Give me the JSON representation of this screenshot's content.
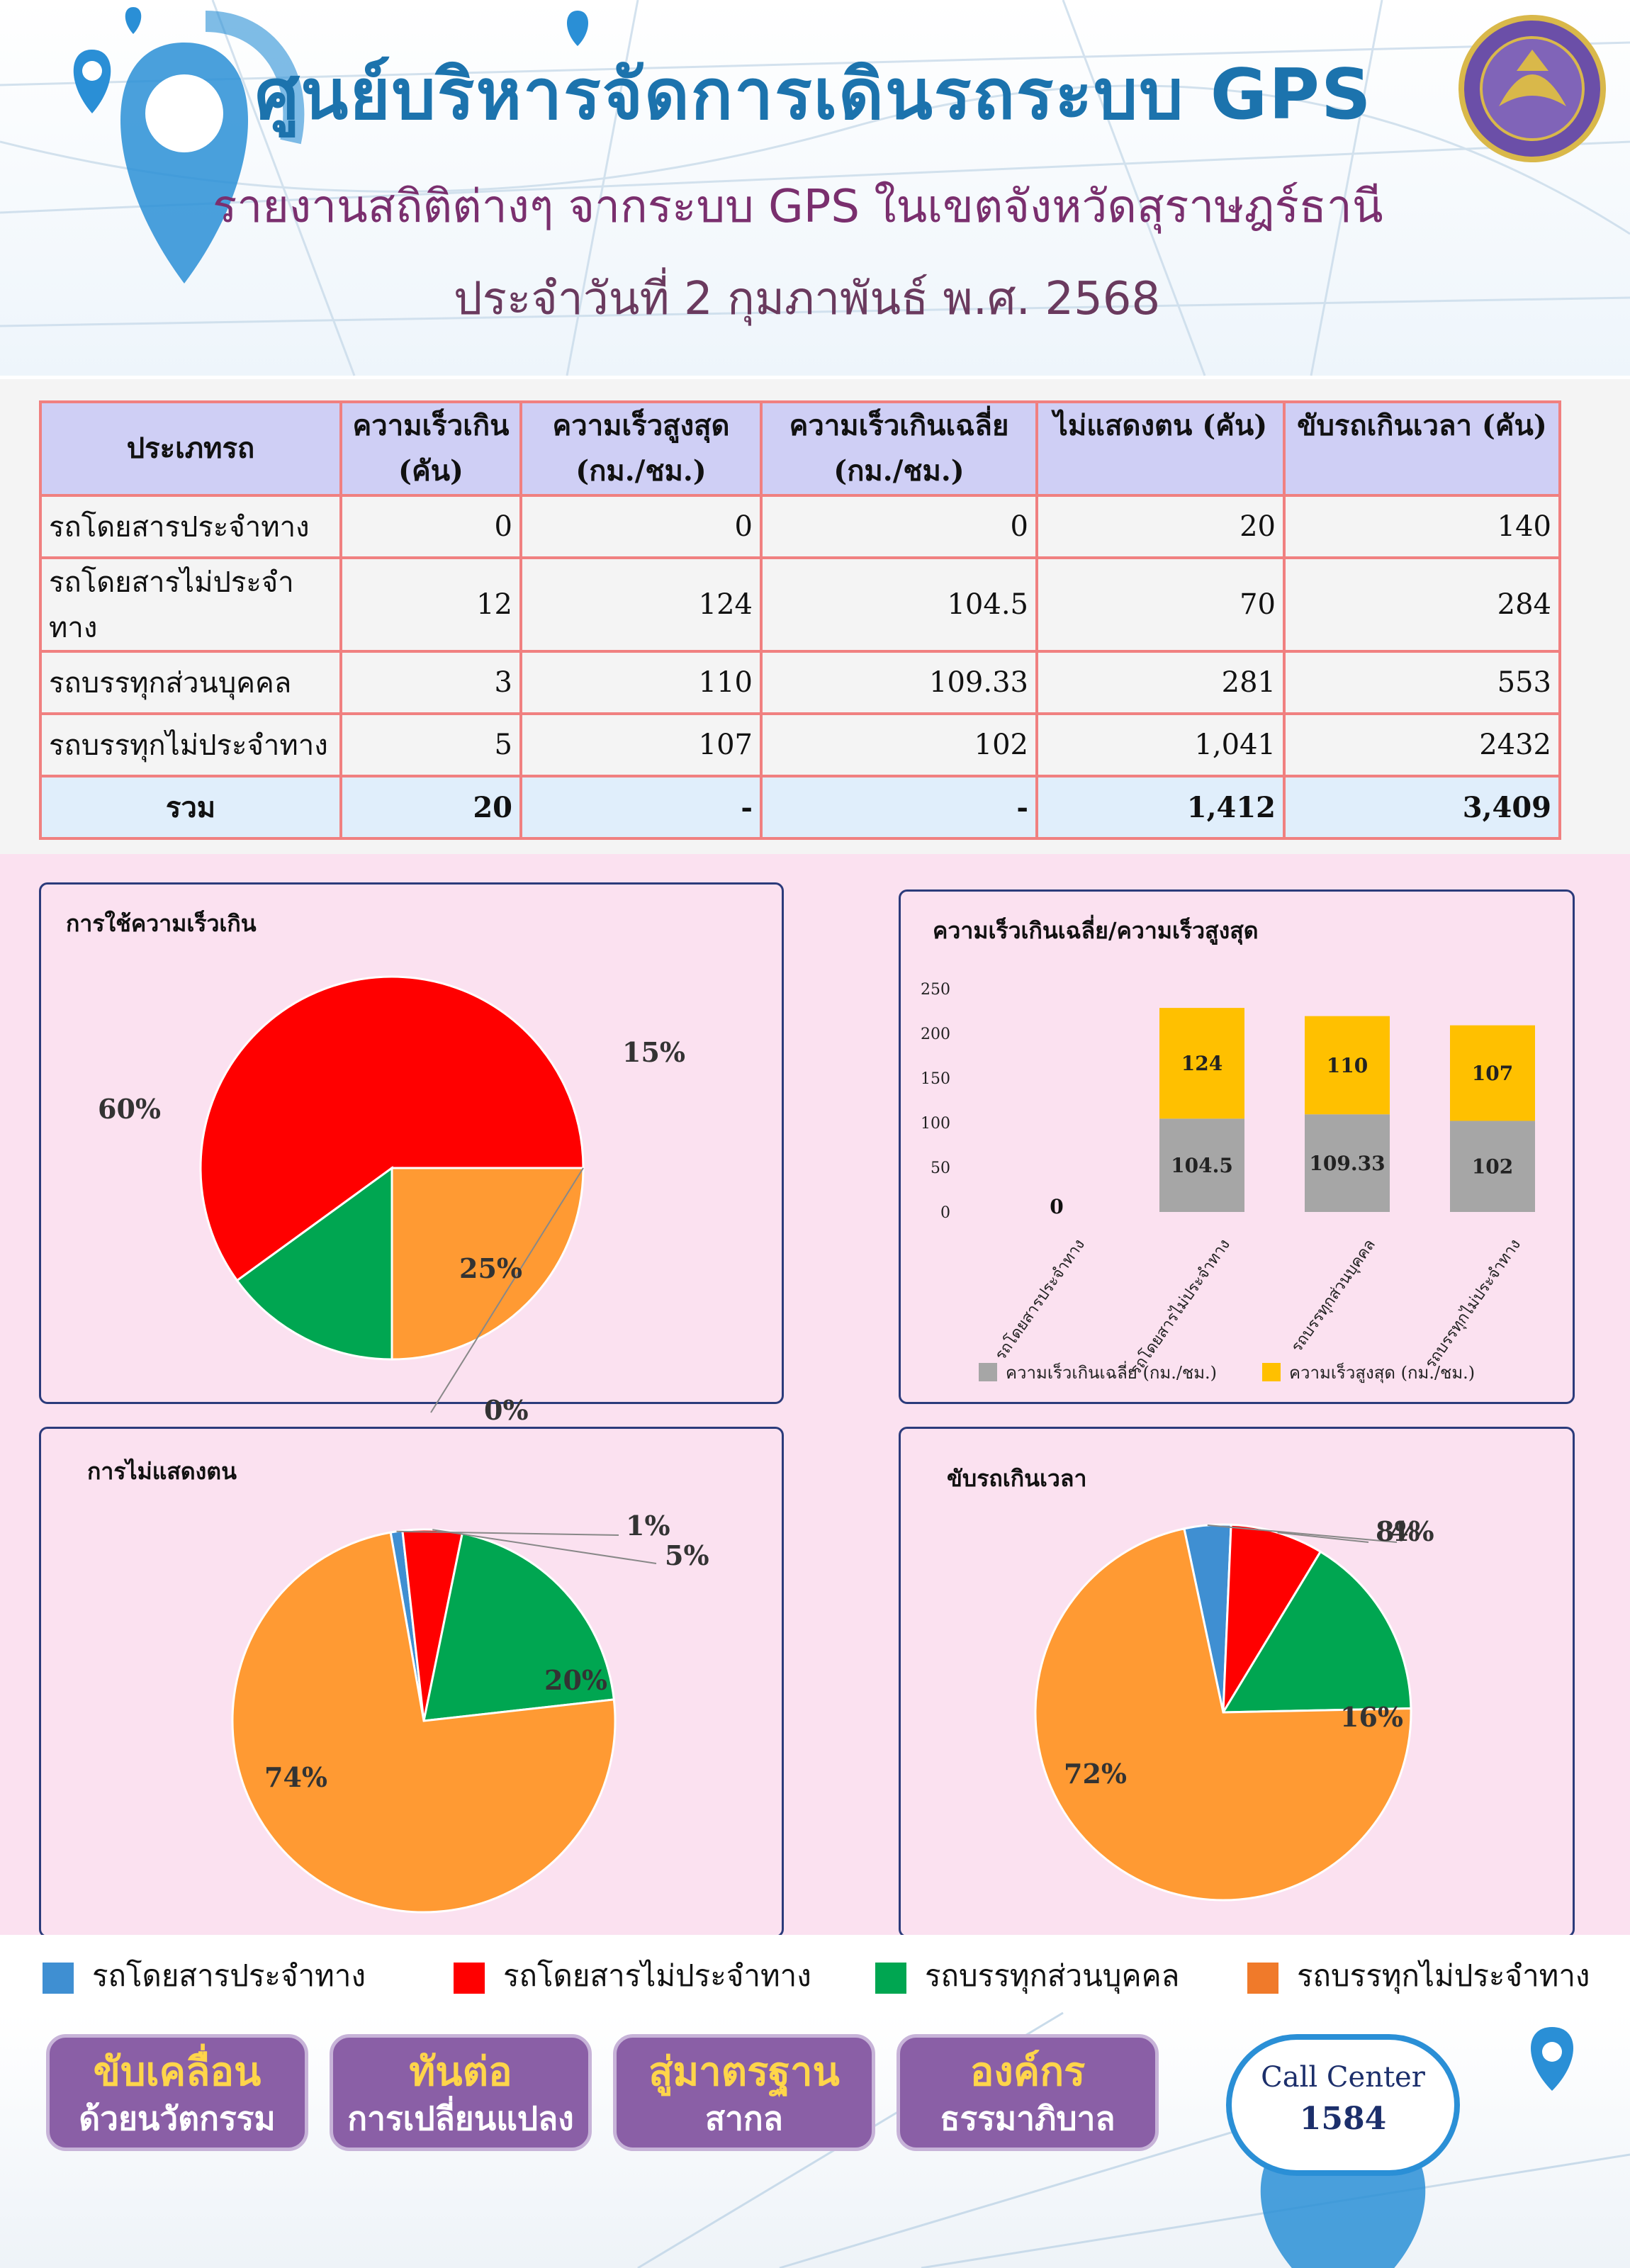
{
  "header": {
    "title": "ศูนย์บริหารจัดการเดินรถระบบ GPS",
    "subtitle": "รายงานสถิติต่างๆ จากระบบ GPS ในเขตจังหวัดสุราษฎร์ธานี",
    "date_line": "ประจำวันที่  2 กุมภาพันธ์  พ.ศ. 2568"
  },
  "table": {
    "headers": [
      "ประเภทรถ",
      "ความเร็วเกิน (คัน)",
      "ความเร็วสูงสุด (กม./ชม.)",
      "ความเร็วเกินเฉลี่ย (กม./ชม.)",
      "ไม่แสดงตน (คัน)",
      "ขับรถเกินเวลา (คัน)"
    ],
    "rows": [
      [
        "รถโดยสารประจำทาง",
        "0",
        "0",
        "0",
        "20",
        "140"
      ],
      [
        "รถโดยสารไม่ประจำทาง",
        "12",
        "124",
        "104.5",
        "70",
        "284"
      ],
      [
        "รถบรรทุกส่วนบุคคล",
        "3",
        "110",
        "109.33",
        "281",
        "553"
      ],
      [
        "รถบรรทุกไม่ประจำทาง",
        "5",
        "107",
        "102",
        "1,041",
        "2432"
      ]
    ],
    "total": [
      "รวม",
      "20",
      "-",
      "-",
      "1,412",
      "3,409"
    ]
  },
  "colors": {
    "bus_fixed": "#3f8fd2",
    "bus_nonfixed": "#ff0000",
    "truck_private": "#00a651",
    "truck_nonfixed": "#ff9a33",
    "bar_avg": "#a6a6a6",
    "bar_max": "#ffc000"
  },
  "legend": {
    "items": [
      {
        "label": "รถโดยสารประจำทาง",
        "color": "#3f8fd2"
      },
      {
        "label": "รถโดยสารไม่ประจำทาง",
        "color": "#ff0000"
      },
      {
        "label": "รถบรรทุกส่วนบุคคล",
        "color": "#00a651"
      },
      {
        "label": "รถบรรทุกไม่ประจำทาง",
        "color": "#ff9a33"
      }
    ]
  },
  "chart_data": [
    {
      "type": "pie",
      "title": "การใช้ความเร็วเกิน",
      "categories": [
        "รถโดยสารประจำทาง",
        "รถโดยสารไม่ประจำทาง",
        "รถบรรทุกส่วนบุคคล",
        "รถบรรทุกไม่ประจำทาง"
      ],
      "values": [
        0,
        60,
        15,
        25
      ],
      "labels": [
        "0%",
        "60%",
        "15%",
        "25%"
      ]
    },
    {
      "type": "bar",
      "title": "ความเร็วเกินเฉลี่ย/ความเร็วสูงสุด",
      "stacked": true,
      "categories": [
        "รถโดยสารประจำทาง",
        "รถโดยสารไม่ประจำทาง",
        "รถบรรทุกส่วนบุคคล",
        "รถบรรทุกไม่ประจำทาง"
      ],
      "series": [
        {
          "name": "ความเร็วเกินเฉลี่ย (กม./ชม.)",
          "values": [
            0,
            104.5,
            109.33,
            102
          ]
        },
        {
          "name": "ความเร็วสูงสุด (กม./ชม.)",
          "values": [
            0,
            124,
            110,
            107
          ]
        }
      ],
      "zero_label": "0",
      "yticks": [
        "0",
        "50",
        "100",
        "150",
        "200",
        "250"
      ],
      "ylim": [
        0,
        250
      ],
      "legend": "bottom"
    },
    {
      "type": "pie",
      "title": "การไม่แสดงตน",
      "categories": [
        "รถโดยสารประจำทาง",
        "รถโดยสารไม่ประจำทาง",
        "รถบรรทุกส่วนบุคคล",
        "รถบรรทุกไม่ประจำทาง"
      ],
      "values": [
        1,
        5,
        20,
        74
      ],
      "labels": [
        "1%",
        "5%",
        "20%",
        "74%"
      ]
    },
    {
      "type": "pie",
      "title": "ขับรถเกินเวลา",
      "categories": [
        "รถโดยสารประจำทาง",
        "รถโดยสารไม่ประจำทาง",
        "รถบรรทุกส่วนบุคคล",
        "รถบรรทุกไม่ประจำทาง"
      ],
      "values": [
        4,
        8,
        16,
        72
      ],
      "labels": [
        "4%",
        "8%",
        "16%",
        "72%"
      ]
    }
  ],
  "footer": {
    "buttons": [
      {
        "line1": "ขับเคลื่อน",
        "line2": "ด้วยนวัตกรรม"
      },
      {
        "line1": "ทันต่อ",
        "line2": "การเปลี่ยนแปลง"
      },
      {
        "line1": "สู่มาตรฐาน",
        "line2": "สากล"
      },
      {
        "line1": "องค์กร",
        "line2": "ธรรมาภิบาล"
      }
    ],
    "call_center_label": "Call Center",
    "call_center_number": "1584"
  }
}
